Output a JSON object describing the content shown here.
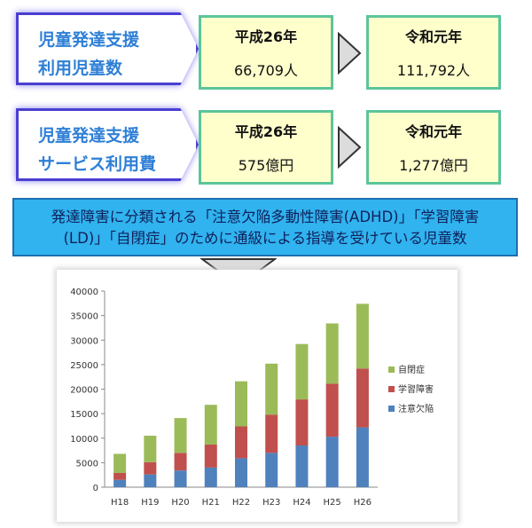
{
  "rows": [
    {
      "label_lines": [
        "児童発達支援",
        "利用児童数"
      ],
      "from": {
        "year": "平成26年",
        "value": "66,709人"
      },
      "to": {
        "year": "令和元年",
        "value": "111,792人"
      }
    },
    {
      "label_lines": [
        "児童発達支援",
        "サービス利用費"
      ],
      "from": {
        "year": "平成26年",
        "value": "575億円"
      },
      "to": {
        "year": "令和元年",
        "value": "1,277億円"
      }
    }
  ],
  "banner": {
    "line1": "発達障害に分類される「注意欠陥多動性障害(ADHD)」「学習障害",
    "line2": "(LD)」「自閉症」のために通級による指導を受けている児童数"
  },
  "colors": {
    "label_text": "#2e7fd6",
    "label_border": "#4a3fd0",
    "value_fill": "#ffffcc",
    "value_border": "#5cc59a",
    "banner_fill": "#30b3ef"
  },
  "chart_data": {
    "type": "bar",
    "stacked": true,
    "categories": [
      "H18",
      "H19",
      "H20",
      "H21",
      "H22",
      "H23",
      "H24",
      "H25",
      "H26"
    ],
    "series": [
      {
        "name": "注意欠陥",
        "color": "#4f81bd",
        "values": [
          1500,
          2600,
          3400,
          4000,
          5900,
          7000,
          8500,
          10300,
          12200
        ]
      },
      {
        "name": "学習障害",
        "color": "#c0504d",
        "values": [
          1400,
          2500,
          3600,
          4700,
          6500,
          7800,
          9400,
          10800,
          12000
        ]
      },
      {
        "name": "自閉症",
        "color": "#9bbb59",
        "values": [
          3900,
          5400,
          7100,
          8100,
          9200,
          10400,
          11300,
          12300,
          13200
        ]
      }
    ],
    "ylim": [
      0,
      40000
    ],
    "yticks": [
      0,
      5000,
      10000,
      15000,
      20000,
      25000,
      30000,
      35000,
      40000
    ],
    "legend_position": "right",
    "grid": false
  }
}
